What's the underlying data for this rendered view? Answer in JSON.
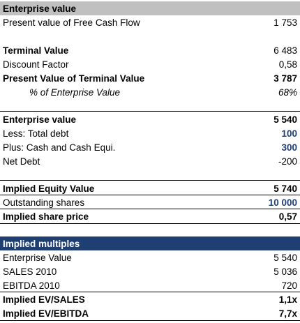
{
  "enterprise_section": {
    "header": "Enterprise value",
    "pv_fcf_label": "Present value of Free Cash Flow",
    "pv_fcf_value": "1 753",
    "terminal_value_label": "Terminal Value",
    "terminal_value_value": "6 483",
    "discount_factor_label": "Discount Factor",
    "discount_factor_value": "0,58",
    "pv_terminal_label": "Present Value of Terminal Value",
    "pv_terminal_value": "3 787",
    "pct_ev_label": "% of Enterprise Value",
    "pct_ev_value": "68%"
  },
  "bridge_section": {
    "ev_label": "Enterprise value",
    "ev_value": "5 540",
    "debt_label": "Less: Total debt",
    "debt_value": "100",
    "cash_label": "Plus: Cash and Cash Equi.",
    "cash_value": "300",
    "net_debt_label": "Net Debt",
    "net_debt_value": "-200"
  },
  "equity_section": {
    "equity_label": "Implied Equity Value",
    "equity_value": "5 740",
    "shares_label": "Outstanding shares",
    "shares_value": "10 000",
    "price_label": "Implied share price",
    "price_value": "0,57"
  },
  "multiples_section": {
    "header": "Implied multiples",
    "ev_label": "Enterprise Value",
    "ev_value": "5 540",
    "sales_label": "SALES 2010",
    "sales_value": "5 036",
    "ebitda_label": "EBITDA 2010",
    "ebitda_value": "720",
    "ev_sales_label": "Implied EV/SALES",
    "ev_sales_value": "1,1x",
    "ev_ebitda_label": "Implied EV/EBITDA",
    "ev_ebitda_value": "7,7x"
  }
}
